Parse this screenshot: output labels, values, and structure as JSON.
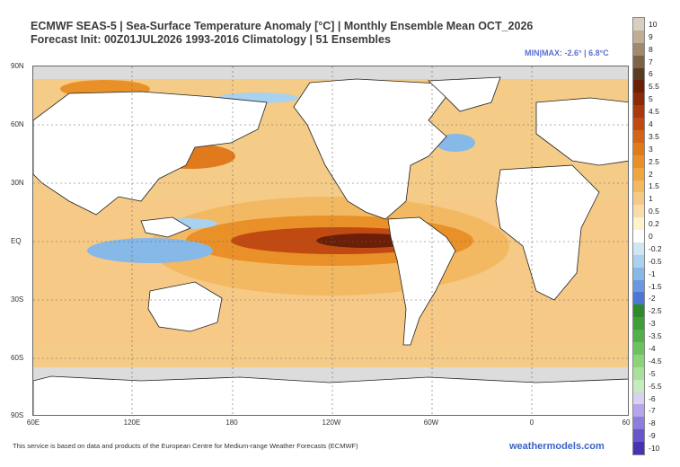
{
  "title": {
    "line1": "ECMWF SEAS-5 | Sea-Surface Temperature Anomaly [°C] | Monthly Ensemble Mean OCT_2026",
    "line2": "Forecast Init: 00Z01JUL2026      1993-2016 Climatology | 51 Ensembles"
  },
  "minmax": "MIN|MAX: -2.6° | 6.8°C",
  "lat_labels": [
    "90N",
    "60N",
    "30N",
    "EQ",
    "30S",
    "60S",
    "90S"
  ],
  "lon_labels": [
    "60E",
    "120E",
    "180",
    "120W",
    "60W",
    "0",
    "60"
  ],
  "footer": {
    "note": "This service is based on data and products of the European Centre for Medium-range Weather Forecasts (ECMWF)",
    "brand": "weathermodels.com"
  },
  "colorbar": {
    "levels": [
      "10",
      "9",
      "8",
      "7",
      "6",
      "5.5",
      "5",
      "4.5",
      "4",
      "3.5",
      "3",
      "2.5",
      "2",
      "1.5",
      "1",
      "0.5",
      "0.2",
      "0",
      "-0.2",
      "-0.5",
      "-1",
      "-1.5",
      "-2",
      "-2.5",
      "-3",
      "-3.5",
      "-4",
      "-4.5",
      "-5",
      "-5.5",
      "-6",
      "-7",
      "-8",
      "-9",
      "-10"
    ],
    "colors": [
      "#d8cfc0",
      "#bfae96",
      "#a08a6c",
      "#7d6448",
      "#5a3c22",
      "#6b1f06",
      "#8c2a08",
      "#a83a0c",
      "#c14a12",
      "#d66418",
      "#e07a1c",
      "#e99128",
      "#f0a640",
      "#f3b862",
      "#f6ca86",
      "#f9dcaa",
      "#fff2cc",
      "#ffffff",
      "#cfe6f5",
      "#a8d2ef",
      "#86b8e8",
      "#6a98e0",
      "#4d76d6",
      "#2f8a2a",
      "#3e9e38",
      "#54b04a",
      "#6dc25e",
      "#8bd27a",
      "#a9e09a",
      "#c7ecbc",
      "#d9d0f2",
      "#b5a6ea",
      "#8f7ddd",
      "#6b55cc",
      "#4633b4"
    ]
  }
}
